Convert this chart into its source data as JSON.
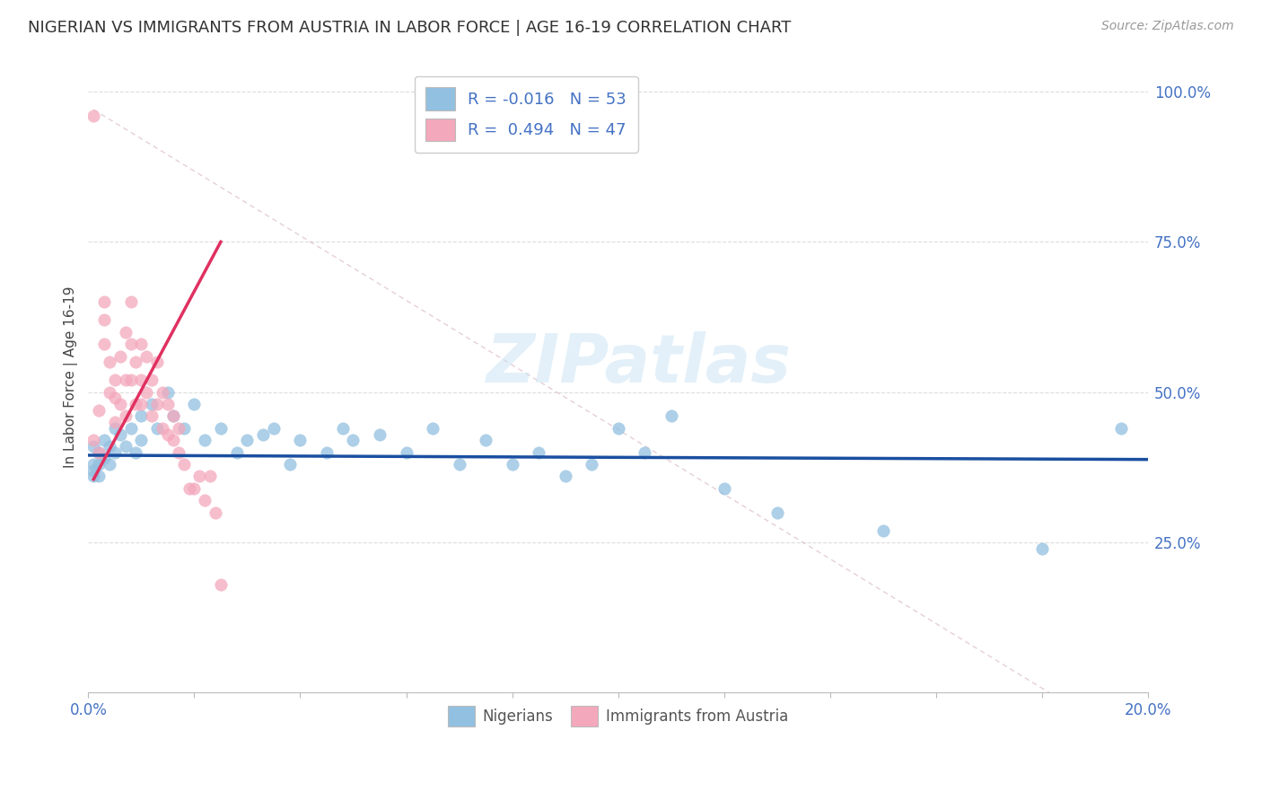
{
  "title": "NIGERIAN VS IMMIGRANTS FROM AUSTRIA IN LABOR FORCE | AGE 16-19 CORRELATION CHART",
  "source": "Source: ZipAtlas.com",
  "ylabel": "In Labor Force | Age 16-19",
  "right_yticks": [
    "100.0%",
    "75.0%",
    "50.0%",
    "25.0%"
  ],
  "right_ytick_vals": [
    1.0,
    0.75,
    0.5,
    0.25
  ],
  "xmin": 0.0,
  "xmax": 0.2,
  "ymin": 0.0,
  "ymax": 1.05,
  "watermark_text": "ZIPatlas",
  "blue_color": "#92c0e0",
  "pink_color": "#f4a8bc",
  "trend_blue_color": "#1a4fa0",
  "trend_pink_color": "#e03060",
  "ref_line_color": "#d0b0c0",
  "legend_label_blue": "R = -0.016   N = 53",
  "legend_label_pink": "R =  0.494   N = 47",
  "nigerians_x": [
    0.001,
    0.001,
    0.001,
    0.001,
    0.002,
    0.002,
    0.002,
    0.003,
    0.003,
    0.004,
    0.004,
    0.005,
    0.005,
    0.006,
    0.007,
    0.008,
    0.009,
    0.01,
    0.01,
    0.012,
    0.013,
    0.015,
    0.016,
    0.018,
    0.02,
    0.022,
    0.025,
    0.028,
    0.03,
    0.033,
    0.035,
    0.038,
    0.04,
    0.045,
    0.048,
    0.05,
    0.055,
    0.06,
    0.065,
    0.07,
    0.075,
    0.08,
    0.085,
    0.09,
    0.095,
    0.1,
    0.105,
    0.11,
    0.12,
    0.13,
    0.15,
    0.18,
    0.195
  ],
  "nigerians_y": [
    0.38,
    0.36,
    0.41,
    0.37,
    0.4,
    0.38,
    0.36,
    0.42,
    0.39,
    0.41,
    0.38,
    0.44,
    0.4,
    0.43,
    0.41,
    0.44,
    0.4,
    0.46,
    0.42,
    0.48,
    0.44,
    0.5,
    0.46,
    0.44,
    0.48,
    0.42,
    0.44,
    0.4,
    0.42,
    0.43,
    0.44,
    0.38,
    0.42,
    0.4,
    0.44,
    0.42,
    0.43,
    0.4,
    0.44,
    0.38,
    0.42,
    0.38,
    0.4,
    0.36,
    0.38,
    0.44,
    0.4,
    0.46,
    0.34,
    0.3,
    0.27,
    0.24,
    0.44
  ],
  "austria_x": [
    0.001,
    0.001,
    0.002,
    0.002,
    0.003,
    0.003,
    0.003,
    0.004,
    0.004,
    0.005,
    0.005,
    0.005,
    0.006,
    0.006,
    0.007,
    0.007,
    0.007,
    0.008,
    0.008,
    0.008,
    0.009,
    0.009,
    0.01,
    0.01,
    0.01,
    0.011,
    0.011,
    0.012,
    0.012,
    0.013,
    0.013,
    0.014,
    0.014,
    0.015,
    0.015,
    0.016,
    0.016,
    0.017,
    0.017,
    0.018,
    0.019,
    0.02,
    0.021,
    0.022,
    0.023,
    0.024,
    0.025
  ],
  "austria_y": [
    0.96,
    0.42,
    0.47,
    0.4,
    0.65,
    0.58,
    0.62,
    0.55,
    0.5,
    0.52,
    0.49,
    0.45,
    0.56,
    0.48,
    0.6,
    0.52,
    0.46,
    0.65,
    0.58,
    0.52,
    0.55,
    0.48,
    0.58,
    0.52,
    0.48,
    0.56,
    0.5,
    0.52,
    0.46,
    0.55,
    0.48,
    0.5,
    0.44,
    0.48,
    0.43,
    0.46,
    0.42,
    0.44,
    0.4,
    0.38,
    0.34,
    0.34,
    0.36,
    0.32,
    0.36,
    0.3,
    0.18
  ],
  "blue_trend_x": [
    0.0,
    0.2
  ],
  "blue_trend_y": [
    0.395,
    0.388
  ],
  "pink_trend_x": [
    0.001,
    0.025
  ],
  "pink_trend_y": [
    0.355,
    0.75
  ]
}
